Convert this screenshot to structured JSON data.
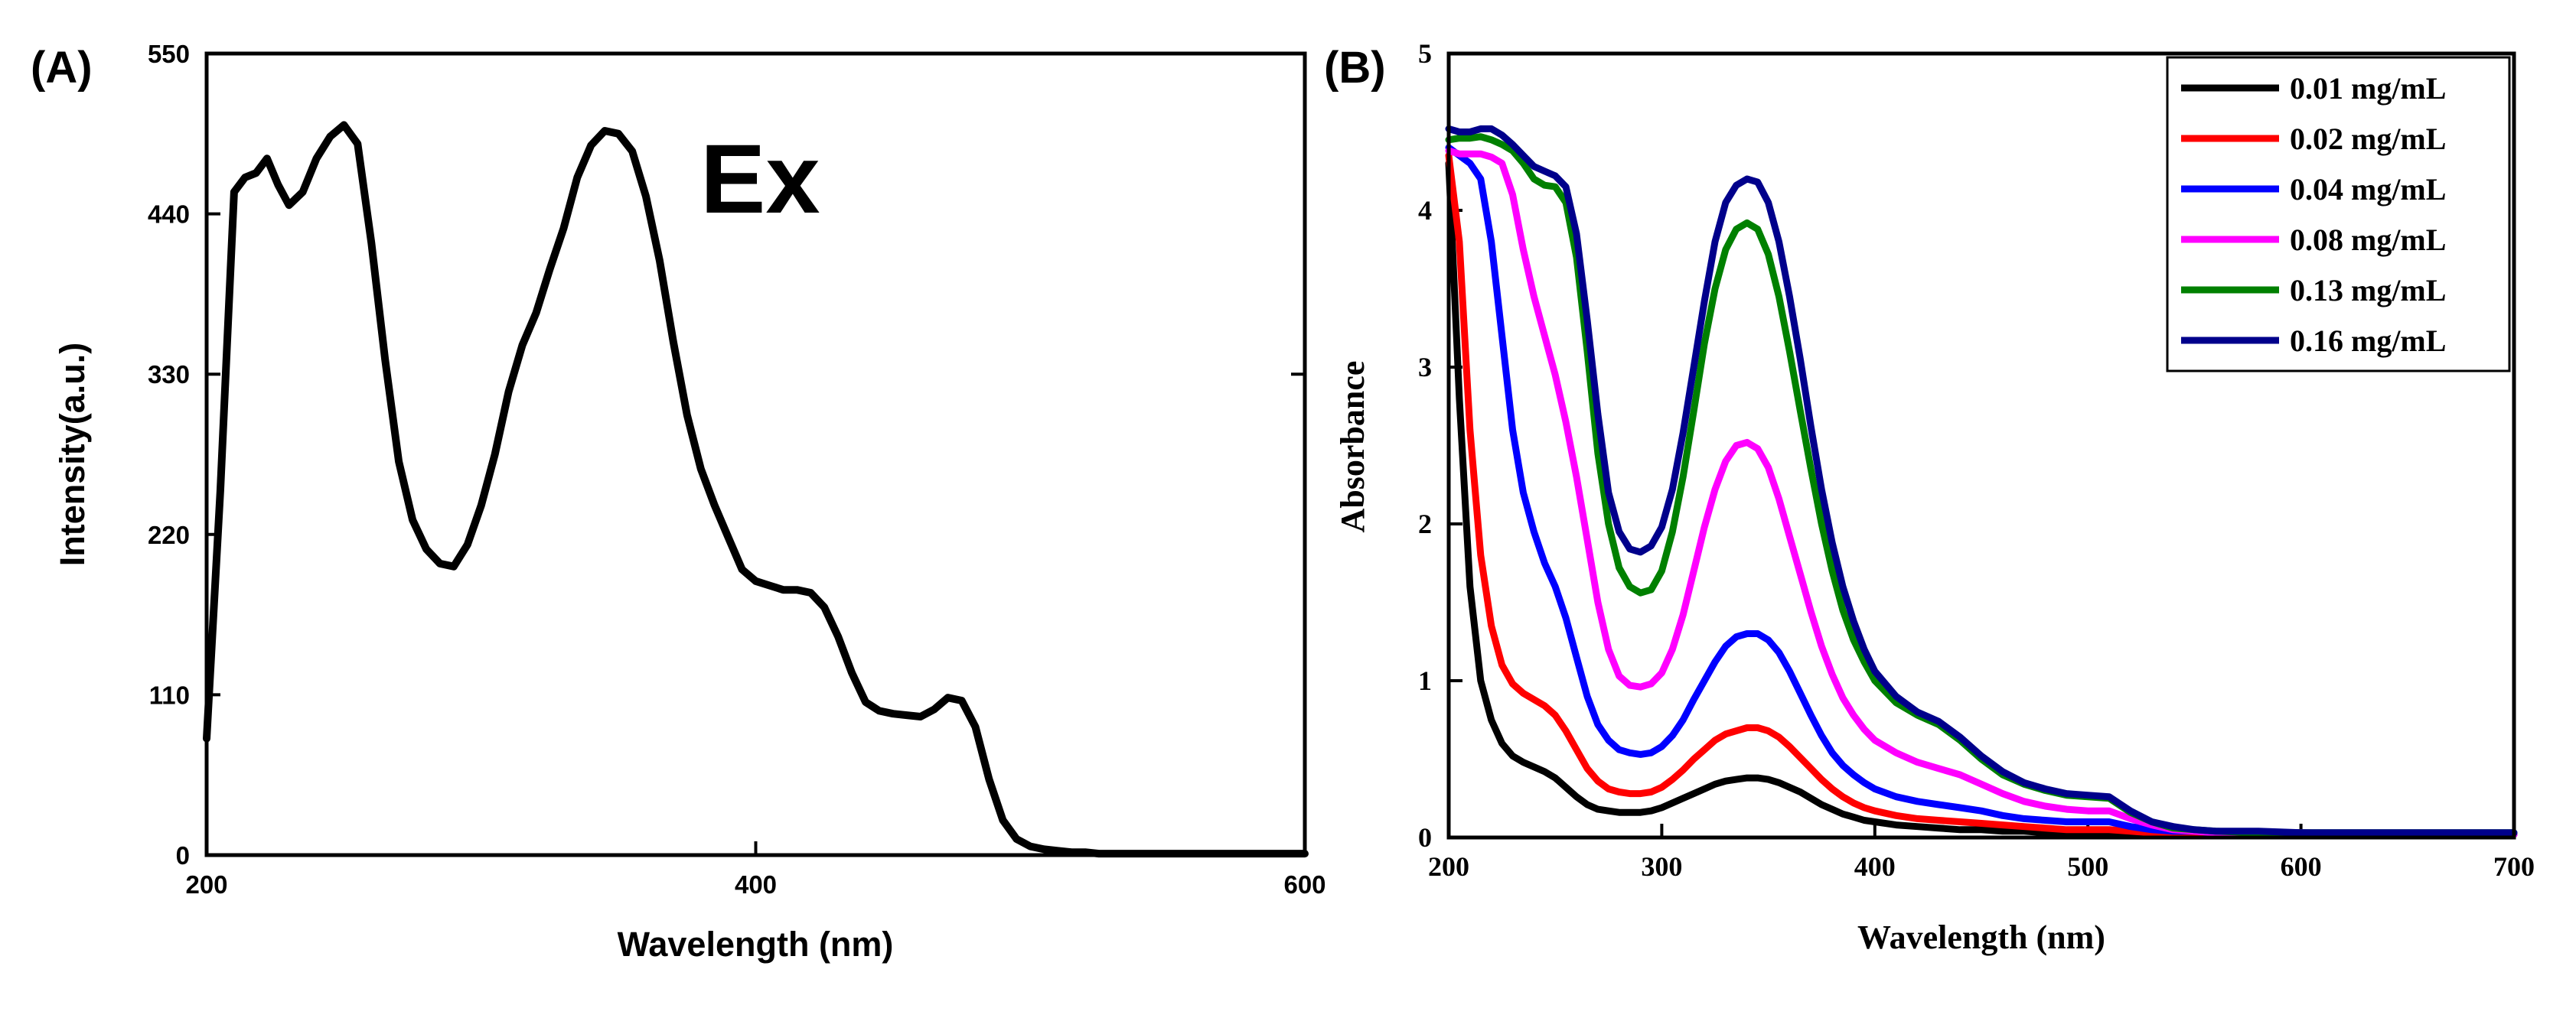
{
  "chart_data": [
    {
      "type": "line",
      "panel_label": "(A)",
      "title": "",
      "xlabel": "Wavelength (nm)",
      "ylabel": "Intensity(a.u.)",
      "xlim": [
        200,
        600
      ],
      "ylim": [
        0,
        550
      ],
      "xticks": [
        200,
        400,
        600
      ],
      "yticks": [
        0,
        110,
        220,
        330,
        440,
        550
      ],
      "xtick_labels": [
        "200",
        "400",
        "600"
      ],
      "ytick_labels": [
        "0",
        "110",
        "220",
        "330",
        "440",
        "550"
      ],
      "annotation": "Ex",
      "series": [
        {
          "name": "Ex",
          "color": "#000000",
          "x": [
            200,
            205,
            210,
            214,
            218,
            222,
            226,
            230,
            235,
            240,
            245,
            250,
            255,
            260,
            265,
            270,
            275,
            280,
            285,
            290,
            295,
            300,
            305,
            310,
            315,
            320,
            325,
            330,
            335,
            340,
            345,
            350,
            355,
            360,
            365,
            370,
            375,
            380,
            385,
            390,
            395,
            400,
            405,
            410,
            415,
            420,
            425,
            430,
            435,
            440,
            445,
            450,
            455,
            460,
            465,
            470,
            475,
            480,
            485,
            490,
            495,
            500,
            505,
            510,
            515,
            520,
            525,
            530,
            535,
            540,
            545,
            550,
            560,
            570,
            580,
            590,
            600
          ],
          "y": [
            80,
            250,
            455,
            465,
            468,
            478,
            460,
            446,
            455,
            478,
            493,
            501,
            488,
            420,
            340,
            270,
            230,
            210,
            200,
            198,
            213,
            240,
            275,
            318,
            350,
            372,
            402,
            430,
            465,
            487,
            497,
            495,
            483,
            452,
            408,
            352,
            302,
            265,
            240,
            218,
            196,
            188,
            185,
            182,
            182,
            180,
            170,
            150,
            125,
            105,
            99,
            97,
            96,
            95,
            100,
            108,
            106,
            88,
            52,
            24,
            11,
            6,
            4,
            3,
            2,
            2,
            1,
            1,
            1,
            1,
            1,
            1,
            1,
            1,
            1,
            1,
            1
          ]
        }
      ]
    },
    {
      "type": "line",
      "panel_label": "(B)",
      "title": "",
      "xlabel": "Wavelength (nm)",
      "ylabel": "Absorbance",
      "xlim": [
        200,
        700
      ],
      "ylim": [
        0,
        5
      ],
      "xticks": [
        200,
        300,
        400,
        500,
        600,
        700
      ],
      "yticks": [
        0,
        1,
        2,
        3,
        4,
        5
      ],
      "xtick_labels": [
        "200",
        "300",
        "400",
        "500",
        "600",
        "700"
      ],
      "ytick_labels": [
        "0",
        "1",
        "2",
        "3",
        "4",
        "5"
      ],
      "legend_position": "top-right",
      "x": [
        200,
        205,
        210,
        215,
        220,
        225,
        230,
        235,
        240,
        245,
        250,
        255,
        260,
        265,
        270,
        275,
        280,
        285,
        290,
        295,
        300,
        305,
        310,
        315,
        320,
        325,
        330,
        335,
        340,
        345,
        350,
        355,
        360,
        365,
        370,
        375,
        380,
        385,
        390,
        395,
        400,
        410,
        420,
        430,
        440,
        450,
        460,
        470,
        480,
        490,
        500,
        510,
        520,
        530,
        540,
        550,
        560,
        580,
        600,
        650,
        700
      ],
      "series": [
        {
          "name": "0.01 mg/mL",
          "color": "#000000",
          "values": [
            4.3,
            2.8,
            1.6,
            1.0,
            0.75,
            0.6,
            0.52,
            0.48,
            0.45,
            0.42,
            0.38,
            0.32,
            0.26,
            0.21,
            0.18,
            0.17,
            0.16,
            0.16,
            0.16,
            0.17,
            0.19,
            0.22,
            0.25,
            0.28,
            0.31,
            0.34,
            0.36,
            0.37,
            0.38,
            0.38,
            0.37,
            0.35,
            0.32,
            0.29,
            0.25,
            0.21,
            0.18,
            0.15,
            0.13,
            0.11,
            0.1,
            0.08,
            0.07,
            0.06,
            0.05,
            0.05,
            0.04,
            0.04,
            0.03,
            0.03,
            0.03,
            0.03,
            0.02,
            0.02,
            0.02,
            0.02,
            0.02,
            0.02,
            0.02,
            0.02,
            0.02
          ]
        },
        {
          "name": "0.02 mg/mL",
          "color": "#ff0000",
          "values": [
            4.35,
            3.8,
            2.6,
            1.8,
            1.35,
            1.1,
            0.98,
            0.92,
            0.88,
            0.84,
            0.78,
            0.68,
            0.56,
            0.44,
            0.36,
            0.31,
            0.29,
            0.28,
            0.28,
            0.29,
            0.32,
            0.37,
            0.43,
            0.5,
            0.56,
            0.62,
            0.66,
            0.68,
            0.7,
            0.7,
            0.68,
            0.64,
            0.58,
            0.51,
            0.44,
            0.37,
            0.31,
            0.26,
            0.22,
            0.19,
            0.17,
            0.14,
            0.12,
            0.11,
            0.1,
            0.09,
            0.08,
            0.07,
            0.06,
            0.05,
            0.05,
            0.05,
            0.04,
            0.03,
            0.03,
            0.03,
            0.02,
            0.02,
            0.02,
            0.02,
            0.02
          ]
        },
        {
          "name": "0.04 mg/mL",
          "color": "#0000ff",
          "values": [
            4.4,
            4.35,
            4.3,
            4.2,
            3.8,
            3.2,
            2.6,
            2.2,
            1.95,
            1.75,
            1.6,
            1.4,
            1.15,
            0.9,
            0.72,
            0.62,
            0.56,
            0.54,
            0.53,
            0.54,
            0.58,
            0.65,
            0.75,
            0.88,
            1.0,
            1.12,
            1.22,
            1.28,
            1.3,
            1.3,
            1.26,
            1.18,
            1.06,
            0.92,
            0.78,
            0.65,
            0.54,
            0.46,
            0.4,
            0.35,
            0.31,
            0.26,
            0.23,
            0.21,
            0.19,
            0.17,
            0.14,
            0.12,
            0.11,
            0.1,
            0.1,
            0.1,
            0.07,
            0.05,
            0.04,
            0.04,
            0.03,
            0.03,
            0.03,
            0.02,
            0.02
          ]
        },
        {
          "name": "0.08 mg/mL",
          "color": "#ff00ff",
          "values": [
            4.38,
            4.36,
            4.36,
            4.36,
            4.34,
            4.3,
            4.1,
            3.75,
            3.45,
            3.2,
            2.95,
            2.65,
            2.3,
            1.9,
            1.5,
            1.2,
            1.03,
            0.97,
            0.96,
            0.98,
            1.05,
            1.2,
            1.42,
            1.7,
            1.98,
            2.22,
            2.4,
            2.5,
            2.52,
            2.48,
            2.36,
            2.16,
            1.92,
            1.68,
            1.44,
            1.22,
            1.04,
            0.89,
            0.78,
            0.69,
            0.62,
            0.54,
            0.48,
            0.44,
            0.4,
            0.34,
            0.28,
            0.23,
            0.2,
            0.18,
            0.17,
            0.17,
            0.12,
            0.08,
            0.05,
            0.04,
            0.03,
            0.03,
            0.03,
            0.02,
            0.02
          ]
        },
        {
          "name": "0.13 mg/mL",
          "color": "#008000",
          "values": [
            4.45,
            4.46,
            4.46,
            4.47,
            4.45,
            4.42,
            4.38,
            4.3,
            4.2,
            4.16,
            4.15,
            4.05,
            3.7,
            3.1,
            2.45,
            2.0,
            1.72,
            1.6,
            1.56,
            1.58,
            1.7,
            1.95,
            2.3,
            2.72,
            3.15,
            3.5,
            3.75,
            3.88,
            3.92,
            3.88,
            3.72,
            3.45,
            3.1,
            2.72,
            2.35,
            2.0,
            1.7,
            1.45,
            1.26,
            1.12,
            1.0,
            0.86,
            0.78,
            0.72,
            0.62,
            0.5,
            0.4,
            0.34,
            0.3,
            0.27,
            0.26,
            0.25,
            0.16,
            0.1,
            0.06,
            0.05,
            0.04,
            0.03,
            0.03,
            0.03,
            0.03
          ]
        },
        {
          "name": "0.16 mg/mL",
          "color": "#00008b",
          "values": [
            4.52,
            4.5,
            4.5,
            4.52,
            4.52,
            4.48,
            4.42,
            4.35,
            4.28,
            4.25,
            4.22,
            4.15,
            3.85,
            3.3,
            2.7,
            2.2,
            1.95,
            1.84,
            1.82,
            1.86,
            1.98,
            2.22,
            2.58,
            3.0,
            3.42,
            3.8,
            4.05,
            4.16,
            4.2,
            4.18,
            4.05,
            3.8,
            3.45,
            3.05,
            2.62,
            2.22,
            1.88,
            1.6,
            1.38,
            1.2,
            1.06,
            0.9,
            0.8,
            0.74,
            0.64,
            0.52,
            0.42,
            0.35,
            0.31,
            0.28,
            0.27,
            0.26,
            0.17,
            0.1,
            0.07,
            0.05,
            0.04,
            0.04,
            0.03,
            0.03,
            0.03
          ]
        }
      ]
    }
  ]
}
